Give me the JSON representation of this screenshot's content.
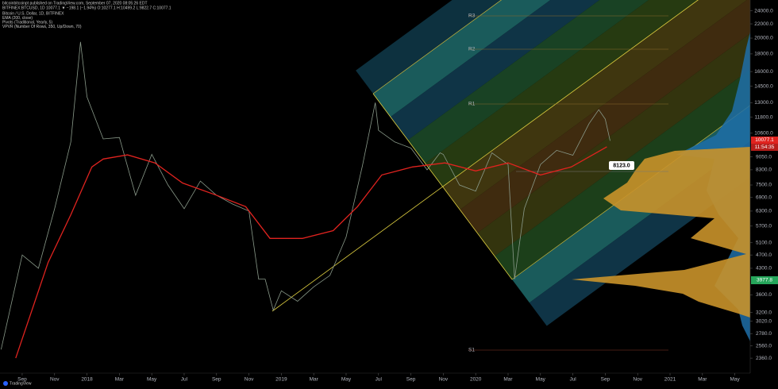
{
  "header": {
    "publisher": "bitcoinbitcoinpt published on TradingView.com, September 07, 2020 08:05:26 EDT",
    "symbol": "BITFINEX:BTCUSD, 1D  10077.1 ▼ −198.1 (−1.94%) O:10277.1 H:10499.2 L:9822.7 C:10077.1",
    "pivots": "Pivots (Traditional, Yearly, 5)",
    "vpvr": "VPVR (Number Of Rows, 350, Up/Down, 70)"
  },
  "pivot_labels": [
    "R3",
    "R2",
    "R1",
    "S1"
  ],
  "markers": {
    "last_price": "10077.1",
    "countdown": "11:54:35",
    "poc": "3977.8",
    "callout": "8123.0"
  },
  "footer": "TradingView",
  "chart_data": {
    "type": "line",
    "log_scale": true,
    "xlim": [
      -1.37,
      44.95
    ],
    "ylim": [
      2135,
      25800
    ],
    "xticks": [
      {
        "value": 0,
        "label": "Sep"
      },
      {
        "value": 2,
        "label": "Nov"
      },
      {
        "value": 4,
        "label": "2018"
      },
      {
        "value": 6,
        "label": "Mar"
      },
      {
        "value": 8,
        "label": "May"
      },
      {
        "value": 10,
        "label": "Jul"
      },
      {
        "value": 12,
        "label": "Sep"
      },
      {
        "value": 14,
        "label": "Nov"
      },
      {
        "value": 16,
        "label": "2019"
      },
      {
        "value": 18,
        "label": "Mar"
      },
      {
        "value": 20,
        "label": "May"
      },
      {
        "value": 22,
        "label": "Jul"
      },
      {
        "value": 24,
        "label": "Sep"
      },
      {
        "value": 26,
        "label": "Nov"
      },
      {
        "value": 28,
        "label": "2020"
      },
      {
        "value": 30,
        "label": "Mar"
      },
      {
        "value": 32,
        "label": "May"
      },
      {
        "value": 34,
        "label": "Jul"
      },
      {
        "value": 36,
        "label": "Sep"
      },
      {
        "value": 38,
        "label": "Nov"
      },
      {
        "value": 40,
        "label": "2021"
      },
      {
        "value": 42,
        "label": "Mar"
      },
      {
        "value": 44,
        "label": "May"
      }
    ],
    "yticks": [
      {
        "value": 24000,
        "label": "24000.0"
      },
      {
        "value": 22000,
        "label": "22000.0"
      },
      {
        "value": 20000,
        "label": "20000.0"
      },
      {
        "value": 18000,
        "label": "18000.0"
      },
      {
        "value": 16000,
        "label": "16000.0"
      },
      {
        "value": 14500,
        "label": "14500.0"
      },
      {
        "value": 13000,
        "label": "13000.0"
      },
      {
        "value": 11800,
        "label": "11800.0"
      },
      {
        "value": 10600,
        "label": "10600.0"
      },
      {
        "value": 9050,
        "label": "9050.0"
      },
      {
        "value": 8300,
        "label": "8300.0"
      },
      {
        "value": 7500,
        "label": "7500.0"
      },
      {
        "value": 6900,
        "label": "6900.0"
      },
      {
        "value": 6300,
        "label": "6300.0"
      },
      {
        "value": 5700,
        "label": "5700.0"
      },
      {
        "value": 5100,
        "label": "5100.0"
      },
      {
        "value": 4700,
        "label": "4700.0"
      },
      {
        "value": 4300,
        "label": "4300.0"
      },
      {
        "value": 3600,
        "label": "3600.0"
      },
      {
        "value": 3200,
        "label": "3200.0"
      },
      {
        "value": 3020,
        "label": "3020.0"
      },
      {
        "value": 2780,
        "label": "2780.0"
      },
      {
        "value": 2560,
        "label": "2560.0"
      },
      {
        "value": 2360,
        "label": "2360.0"
      }
    ],
    "series": [
      {
        "name": "Bitcoin / U.S. Dollar, 1D, BITFINEX",
        "color": "#8a9a8a",
        "x": [
          -1.3,
          0,
          1,
          2,
          3,
          3.6,
          4,
          5,
          6,
          7,
          8,
          9,
          10,
          11,
          12,
          13,
          14,
          14.6,
          15,
          15.5,
          16,
          17,
          18,
          19,
          20,
          21,
          21.8,
          22,
          23,
          24,
          25,
          25.8,
          26,
          27,
          28,
          29,
          30,
          30.4,
          31,
          32,
          33,
          34,
          35,
          35.6,
          36,
          36.3
        ],
        "values": [
          2500,
          4700,
          4300,
          6400,
          10000,
          19500,
          13500,
          10200,
          10300,
          7000,
          9200,
          7500,
          6400,
          7700,
          7000,
          6600,
          6300,
          4000,
          4000,
          3250,
          3700,
          3450,
          3800,
          4100,
          5300,
          8500,
          13000,
          10800,
          10000,
          9600,
          8300,
          9300,
          9200,
          7500,
          7200,
          9300,
          8600,
          4000,
          6400,
          8600,
          9450,
          9150,
          11300,
          12400,
          11650,
          10077
        ]
      },
      {
        "name": "EMA (200, close)",
        "color": "#e0231f",
        "x": [
          -0.4,
          1.6,
          3,
          4.3,
          5,
          6.5,
          8.2,
          9.9,
          11.9,
          13.8,
          15.3,
          17.3,
          19.2,
          20.7,
          22.2,
          24.1,
          26.1,
          28,
          30,
          32,
          33.9,
          36.1
        ],
        "values": [
          2360,
          4470,
          6150,
          8460,
          8920,
          9170,
          8690,
          7600,
          7030,
          6490,
          5250,
          5250,
          5530,
          6490,
          8020,
          8460,
          8690,
          8240,
          8690,
          8020,
          8460,
          9680
        ]
      }
    ]
  }
}
